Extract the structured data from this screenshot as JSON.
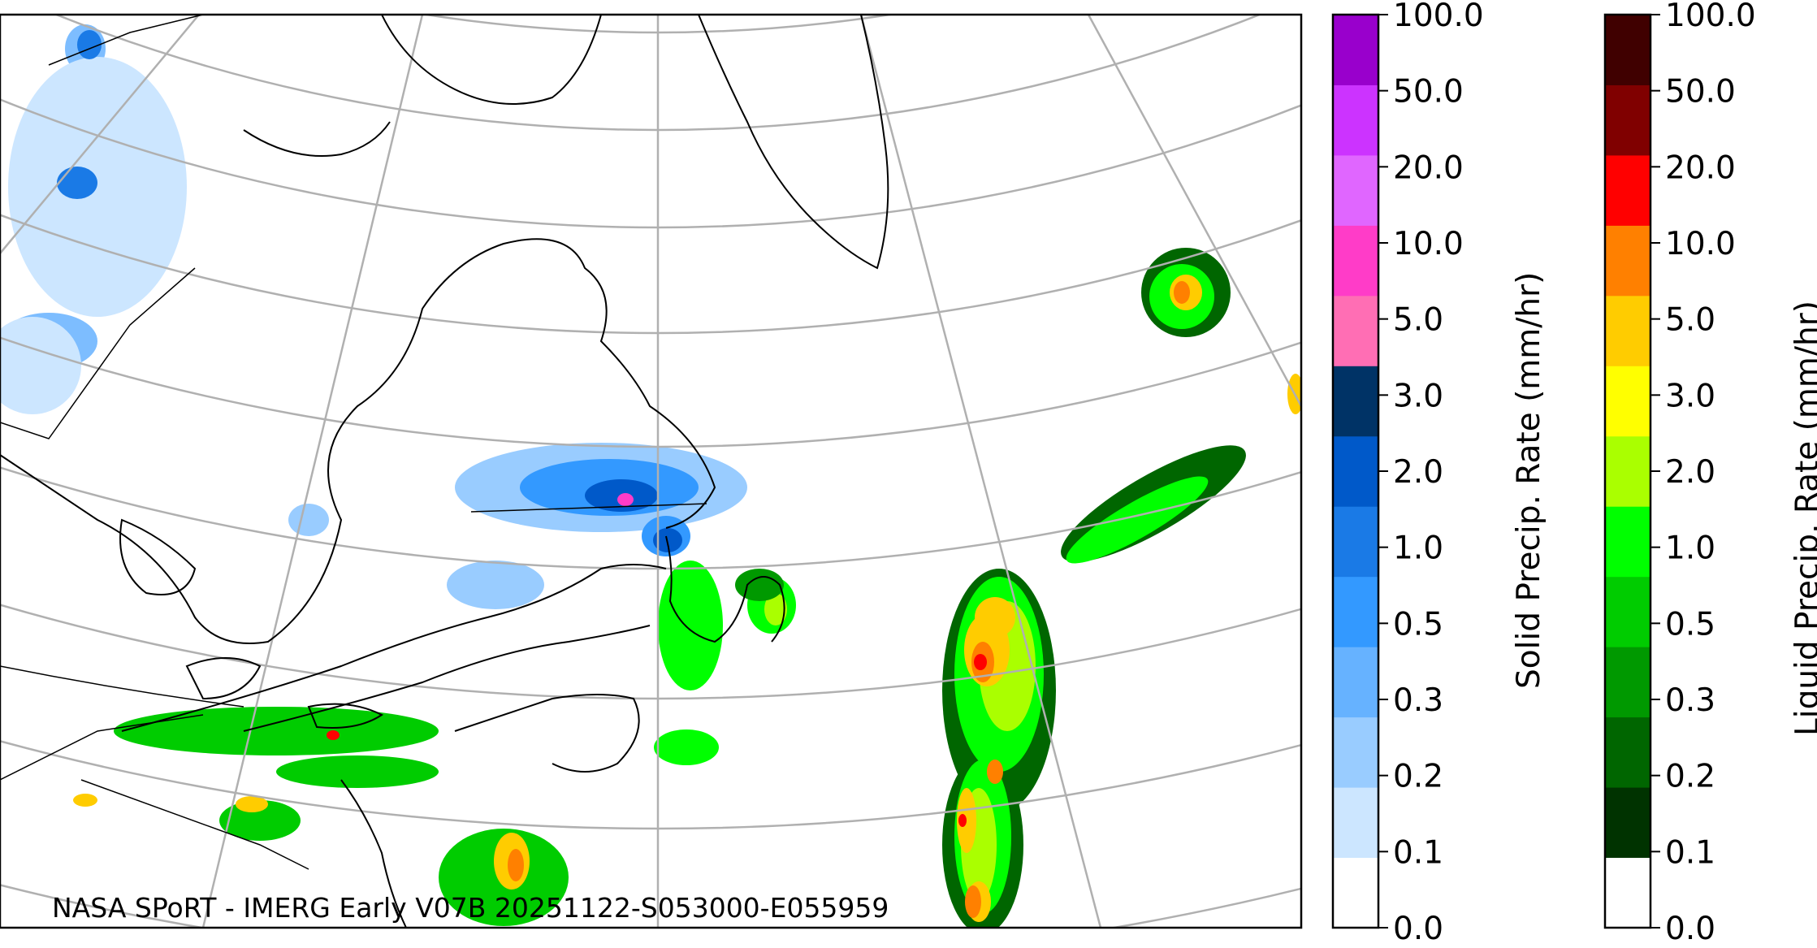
{
  "credit": "NASA SPoRT - IMERG Early V07B 20251122-S053000-E055959",
  "solid_colorbar": {
    "label": "Solid Precip. Rate (mm/hr)",
    "ticks": [
      "0.0",
      "0.1",
      "0.2",
      "0.3",
      "0.5",
      "1.0",
      "2.0",
      "3.0",
      "5.0",
      "10.0",
      "20.0",
      "50.0",
      "100.0"
    ],
    "colors": [
      "#ffffff",
      "#cce6ff",
      "#99ccff",
      "#66b2ff",
      "#3399ff",
      "#1a7ae6",
      "#0059c9",
      "#003366",
      "#ff6eb4",
      "#ff3cc8",
      "#e066ff",
      "#cc33ff",
      "#9900cc"
    ]
  },
  "liquid_colorbar": {
    "label": "Liquid Precip. Rate (mm/hr)",
    "ticks": [
      "0.0",
      "0.1",
      "0.2",
      "0.3",
      "0.5",
      "1.0",
      "2.0",
      "3.0",
      "5.0",
      "10.0",
      "20.0",
      "50.0",
      "100.0"
    ],
    "colors": [
      "#ffffff",
      "#003300",
      "#006600",
      "#009900",
      "#00cc00",
      "#00ff00",
      "#aaff00",
      "#ffff00",
      "#ffcc00",
      "#ff8000",
      "#ff0000",
      "#800000",
      "#400000"
    ]
  }
}
